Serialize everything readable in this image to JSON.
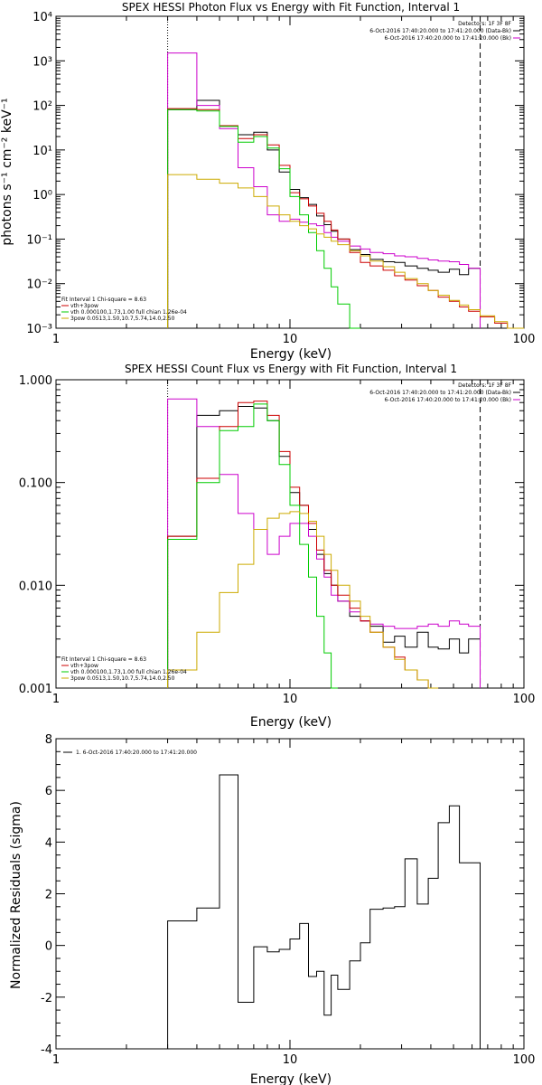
{
  "chart_data": [
    {
      "type": "line",
      "title": "SPEX HESSI Photon Flux vs Energy with Fit Function, Interval 1",
      "xlabel": "Energy (keV)",
      "ylabel": "photons s⁻¹ cm⁻² keV⁻¹",
      "xscale": "log",
      "yscale": "log",
      "xlim": [
        1,
        100
      ],
      "ylim": [
        0.001,
        10000
      ],
      "x_tick_labels": [
        "1",
        "10",
        "100"
      ],
      "y_tick_labels": [
        "10⁻³",
        "10⁻²",
        "10⁻¹",
        "10⁰",
        "10¹",
        "10²",
        "10³",
        "10⁴"
      ],
      "y_tick_values": [
        0.001,
        0.01,
        0.1,
        1,
        10,
        100,
        1000,
        10000
      ],
      "vlines": [
        {
          "x": 3,
          "style": "dotted"
        },
        {
          "x": 65,
          "style": "dashed"
        }
      ],
      "legend_top": {
        "header": "Detectors: 1F 3F 8F",
        "items": [
          {
            "label": "6-Oct-2016 17:40:20.000 to 17:41:20.000 (Data-Bk)",
            "color": "#000000"
          },
          {
            "label": "6-Oct-2016 17:40:20.000 to 17:41:20.000 (Bk)",
            "color": "#cc00cc"
          }
        ]
      },
      "legend_bottom": {
        "header": "Fit Interval 1   Chi-square = 8.63",
        "items": [
          {
            "label": "vth+3pow",
            "color": "#cc0000"
          },
          {
            "label": "vth 0.000100,1.73,1.00  full chian 1.26e-04",
            "color": "#00cc00"
          },
          {
            "label": "3pow 0.0513,1.50,10.7,5.74,14.0,2.50",
            "color": "#ccaa00"
          }
        ]
      },
      "energy_edges": [
        3,
        4,
        5,
        6,
        7,
        8,
        9,
        10,
        11,
        12,
        13,
        14,
        15,
        16,
        18,
        20,
        22,
        25,
        28,
        31,
        35,
        39,
        43,
        48,
        53,
        58,
        65,
        75,
        85,
        100
      ],
      "series": [
        {
          "name": "Data-Bk",
          "color": "#000000",
          "values": [
            80,
            130,
            35,
            22,
            25,
            10,
            3.2,
            1.3,
            0.85,
            0.6,
            0.33,
            0.21,
            0.15,
            0.1,
            0.058,
            0.045,
            0.035,
            0.031,
            0.03,
            0.025,
            0.022,
            0.02,
            0.018,
            0.021,
            0.016,
            0.022,
            null,
            null,
            null
          ]
        },
        {
          "name": "Bk",
          "color": "#cc00cc",
          "values": [
            1500,
            100,
            30,
            4,
            1.5,
            0.35,
            0.25,
            0.28,
            0.24,
            0.22,
            0.2,
            0.14,
            0.11,
            0.09,
            0.07,
            0.06,
            0.05,
            0.047,
            0.042,
            0.04,
            0.037,
            0.034,
            0.032,
            0.031,
            0.027,
            0.022,
            null,
            null,
            null
          ]
        },
        {
          "name": "vth+3pow",
          "color": "#cc0000",
          "values": [
            85,
            80,
            35,
            18,
            22,
            13,
            4.5,
            1.1,
            0.8,
            0.55,
            0.38,
            0.25,
            0.16,
            0.1,
            0.05,
            0.03,
            0.025,
            0.02,
            0.015,
            0.012,
            0.009,
            0.007,
            0.005,
            0.004,
            0.003,
            0.0024,
            0.0018,
            0.0013,
            0.001
          ]
        },
        {
          "name": "vth",
          "color": "#00cc00",
          "values": [
            80,
            75,
            34,
            15,
            20,
            11,
            3.8,
            0.9,
            0.35,
            0.14,
            0.055,
            0.022,
            0.0085,
            0.0035,
            0.0009,
            null,
            null,
            null,
            null,
            null,
            null,
            null,
            null,
            null,
            null,
            null,
            null,
            null,
            null
          ]
        },
        {
          "name": "3pow",
          "color": "#ccaa00",
          "values": [
            2.8,
            2.2,
            1.8,
            1.4,
            0.9,
            0.55,
            0.35,
            0.25,
            0.2,
            0.17,
            0.13,
            0.11,
            0.09,
            0.075,
            0.055,
            0.042,
            0.032,
            0.024,
            0.018,
            0.013,
            0.01,
            0.007,
            0.0055,
            0.0042,
            0.0033,
            0.0026,
            0.0019,
            0.0014,
            0.001
          ]
        }
      ]
    },
    {
      "type": "line",
      "title": "SPEX HESSI Count Flux vs Energy with Fit Function, Interval 1",
      "xlabel": "Energy (keV)",
      "ylabel": "",
      "xscale": "log",
      "yscale": "log",
      "xlim": [
        1,
        100
      ],
      "ylim": [
        0.001,
        1.0
      ],
      "x_tick_labels": [
        "1",
        "10",
        "100"
      ],
      "y_tick_labels": [
        "0.001",
        "0.010",
        "0.100",
        "1.000"
      ],
      "y_tick_values": [
        0.001,
        0.01,
        0.1,
        1.0
      ],
      "vlines": [
        {
          "x": 3,
          "style": "dotted"
        },
        {
          "x": 65,
          "style": "dashed"
        }
      ],
      "legend_top": {
        "header": "Detectors: 1F 3F 8F",
        "items": [
          {
            "label": "6-Oct-2016 17:40:20.000 to 17:41:20.000 (Data-Bk)",
            "color": "#000000"
          },
          {
            "label": "6-Oct-2016 17:40:20.000 to 17:41:20.000 (Bk)",
            "color": "#cc00cc"
          }
        ]
      },
      "legend_bottom": {
        "header": "Fit Interval 1   Chi-square = 8.63",
        "items": [
          {
            "label": "vth+3pow",
            "color": "#cc0000"
          },
          {
            "label": "vth 0.000100,1.73,1.00  full chian 1.26e-04",
            "color": "#00cc00"
          },
          {
            "label": "3pow 0.0513,1.50,10.7,5.74,14.0,2.50",
            "color": "#ccaa00"
          }
        ]
      },
      "energy_edges": [
        3,
        4,
        5,
        6,
        7,
        8,
        9,
        10,
        11,
        12,
        13,
        14,
        15,
        16,
        18,
        20,
        22,
        25,
        28,
        31,
        35,
        39,
        43,
        48,
        53,
        58,
        65,
        75,
        85,
        100
      ],
      "series": [
        {
          "name": "Data-Bk",
          "color": "#000000",
          "values": [
            0.03,
            0.45,
            0.5,
            0.55,
            0.53,
            0.4,
            0.18,
            0.08,
            0.06,
            0.035,
            0.02,
            0.013,
            0.01,
            0.007,
            0.005,
            0.0045,
            0.004,
            0.0028,
            0.0032,
            0.0025,
            0.0035,
            0.0025,
            0.0024,
            0.003,
            0.0022,
            0.003,
            null,
            null,
            null
          ]
        },
        {
          "name": "Bk",
          "color": "#cc00cc",
          "values": [
            0.65,
            0.35,
            0.12,
            0.05,
            0.035,
            0.02,
            0.03,
            0.04,
            0.04,
            0.03,
            0.018,
            0.012,
            0.008,
            0.007,
            0.0055,
            0.0045,
            0.0042,
            0.004,
            0.0038,
            0.0038,
            0.004,
            0.0042,
            0.004,
            0.0045,
            0.0042,
            0.004,
            null,
            null,
            null
          ]
        },
        {
          "name": "vth+3pow",
          "color": "#cc0000",
          "values": [
            0.03,
            0.11,
            0.35,
            0.6,
            0.62,
            0.45,
            0.2,
            0.09,
            0.06,
            0.04,
            0.022,
            0.014,
            0.01,
            0.008,
            0.006,
            0.0045,
            0.0035,
            0.0025,
            0.002,
            0.0015,
            0.0012,
            0.001,
            null,
            null,
            null,
            null,
            null,
            null,
            null
          ]
        },
        {
          "name": "vth",
          "color": "#00cc00",
          "values": [
            0.028,
            0.1,
            0.32,
            0.35,
            0.58,
            0.4,
            0.15,
            0.06,
            0.025,
            0.012,
            0.005,
            0.0022,
            0.001,
            null,
            null,
            null,
            null,
            null,
            null,
            null,
            null,
            null,
            null,
            null,
            null,
            null,
            null,
            null,
            null
          ]
        },
        {
          "name": "3pow",
          "color": "#ccaa00",
          "values": [
            0.0015,
            0.0035,
            0.0085,
            0.016,
            0.035,
            0.045,
            0.05,
            0.052,
            0.05,
            0.042,
            0.03,
            0.02,
            0.014,
            0.01,
            0.007,
            0.005,
            0.0035,
            0.0025,
            0.0019,
            0.0015,
            0.0012,
            0.001,
            null,
            null,
            null,
            null,
            null,
            null,
            null
          ]
        }
      ]
    },
    {
      "type": "line",
      "title": "",
      "xlabel": "Energy (keV)",
      "ylabel": "Normalized Residuals (sigma)",
      "xscale": "log",
      "yscale": "linear",
      "xlim": [
        1,
        100
      ],
      "ylim": [
        -4,
        8
      ],
      "x_tick_labels": [
        "1",
        "10",
        "100"
      ],
      "y_tick_labels": [
        "-4",
        "-2",
        "0",
        "2",
        "4",
        "6",
        "8"
      ],
      "y_tick_values": [
        -4,
        -2,
        0,
        2,
        4,
        6,
        8
      ],
      "legend_top": {
        "header": "",
        "items": [
          {
            "label": "1.  6-Oct-2016 17:40:20.000 to 17:41:20.000",
            "color": "#000000"
          }
        ]
      },
      "energy_edges": [
        3,
        4,
        5,
        6,
        7,
        8,
        9,
        10,
        11,
        12,
        13,
        14,
        15,
        16,
        18,
        20,
        22,
        25,
        28,
        31,
        35,
        39,
        43,
        48,
        53,
        58,
        65
      ],
      "series": [
        {
          "name": "",
          "color": "#000000",
          "values": [
            0.95,
            1.45,
            6.6,
            -2.2,
            -0.05,
            -0.25,
            -0.15,
            0.25,
            0.85,
            -1.2,
            -1.0,
            -2.7,
            -1.15,
            -1.7,
            -0.6,
            0.1,
            1.4,
            1.45,
            1.5,
            3.35,
            1.6,
            2.6,
            4.75,
            5.4,
            3.2,
            3.2
          ]
        }
      ]
    }
  ]
}
